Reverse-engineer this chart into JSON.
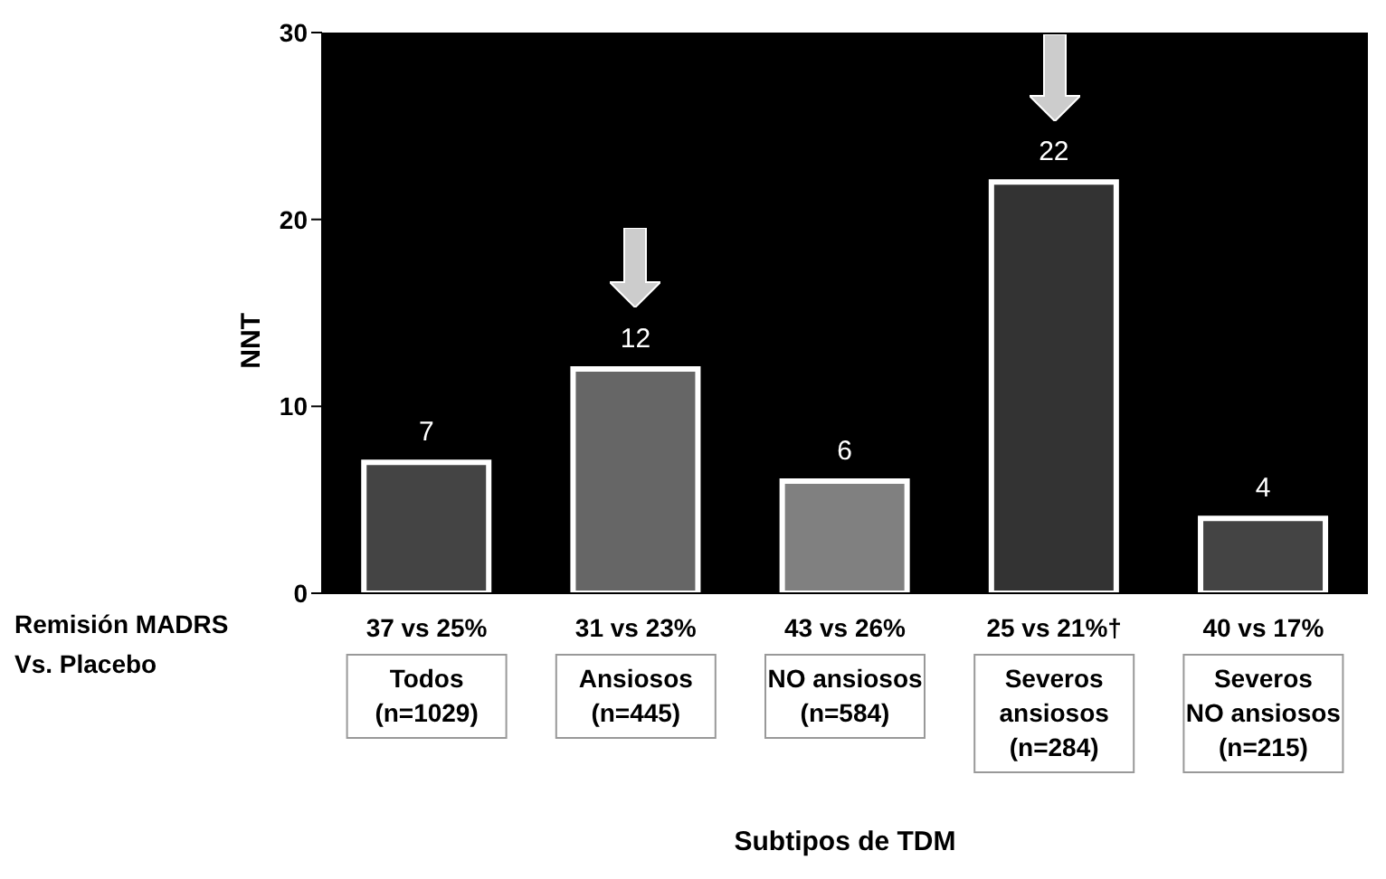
{
  "chart_data": {
    "type": "bar",
    "ylabel": "NNT",
    "xlabel": "Subtipos de TDM",
    "categories": [
      "37 vs 25%\nTodos\n(n=1029)",
      "31 vs 23%\nAnsiosos\n(n=445)",
      "43 vs 26%\nNO ansiosos\n(n=584)",
      "25 vs 21%†\nSeveros\nansiosos\n(n=284)",
      "40 vs 17%\nSeveros\nNO ansiosos\n(n=215)"
    ],
    "values": [
      7,
      12,
      6,
      22,
      4
    ],
    "colors": [
      "#444444",
      "#666666",
      "#808080",
      "#333333",
      "#444444"
    ],
    "ylim": [
      0,
      30
    ],
    "yticks": [
      0,
      10,
      20,
      30
    ],
    "grid": false,
    "data_labels": true,
    "annotations": [
      "Remisión MADRS\nVs. Placebo"
    ]
  }
}
